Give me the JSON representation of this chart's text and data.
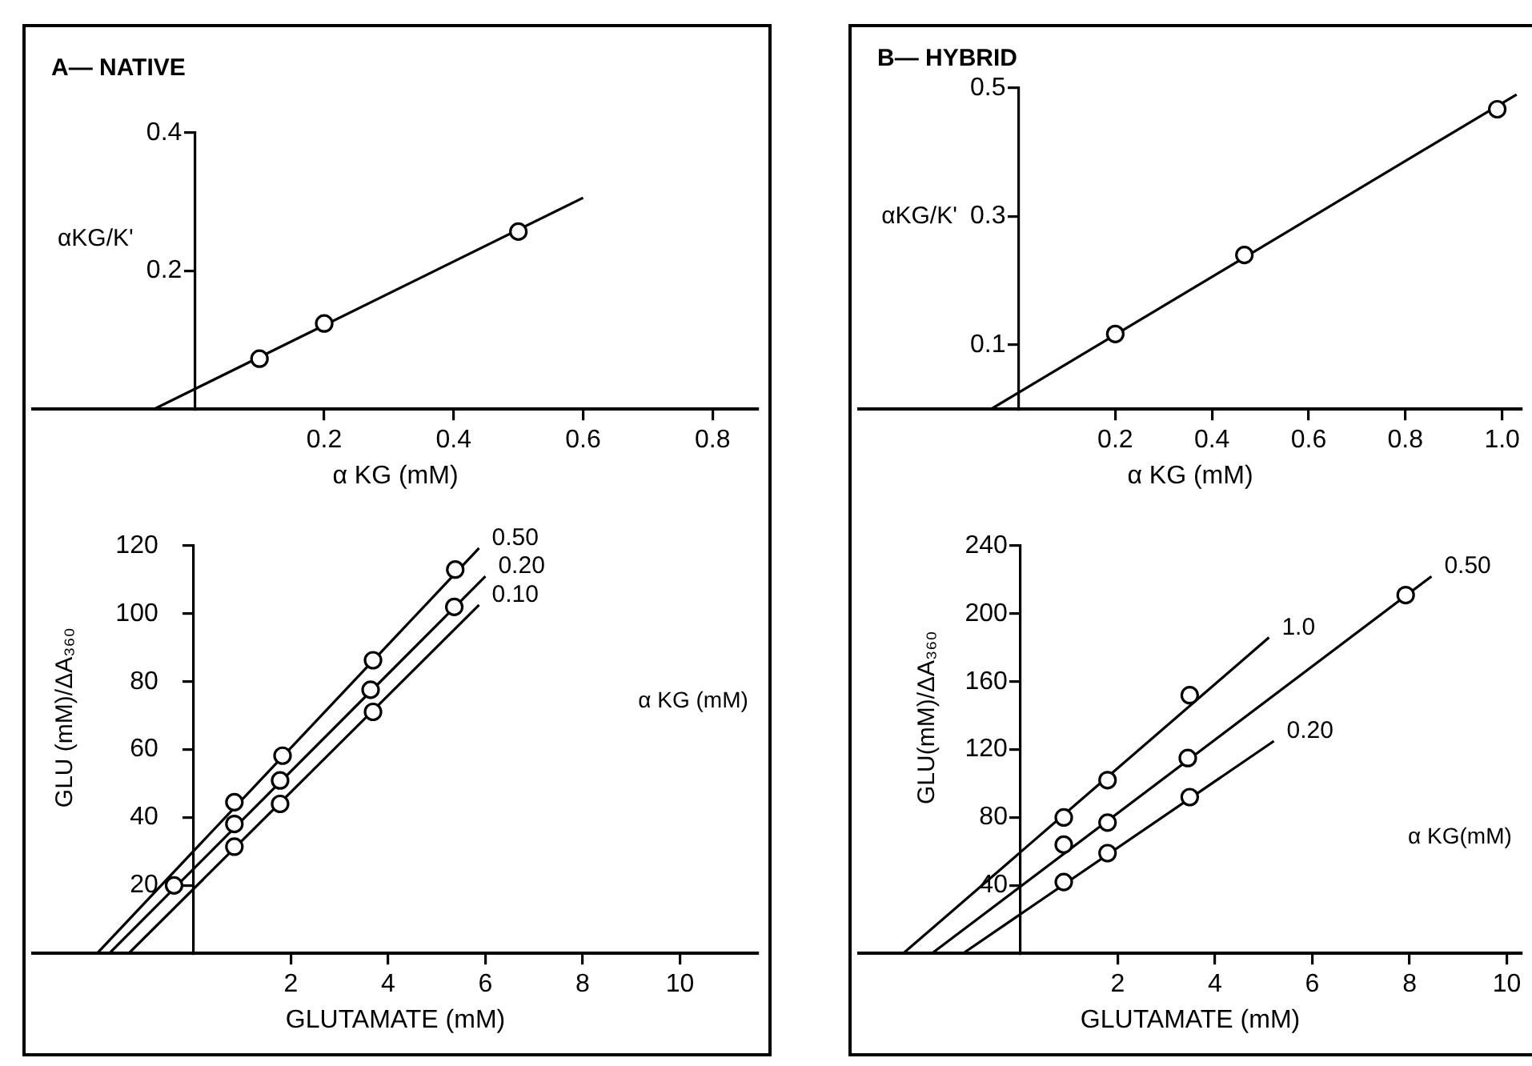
{
  "chart_data": [
    {
      "type": "scatter",
      "title": "A— NATIVE",
      "xlabel": "α KG (mM)",
      "ylabel": "αKG/K'",
      "xlim": [
        -0.25,
        0.87
      ],
      "ylim": [
        0,
        0.4
      ],
      "xticks": [
        0.2,
        0.4,
        0.6,
        0.8
      ],
      "yticks": [
        0.2,
        0.4
      ],
      "series": [
        {
          "type": "scatter",
          "marker": "circle",
          "color": "#000000",
          "x": [
            0.1,
            0.2,
            0.5
          ],
          "values": [
            0.073,
            0.124,
            0.257
          ]
        },
        {
          "type": "line",
          "marker": "none",
          "color": "#000000",
          "x": [
            -0.063,
            0.6
          ],
          "values": [
            0,
            0.306
          ]
        }
      ]
    },
    {
      "type": "scatter",
      "xlabel": "GLUTAMATE (mM)",
      "ylabel": "GLU (mM)/ΔA₃₆₀",
      "legend_title": "α KG (mM)",
      "xlim": [
        -3.3,
        11.6
      ],
      "ylim": [
        0,
        120
      ],
      "xticks": [
        2,
        4,
        6,
        8,
        10
      ],
      "yticks": [
        20,
        40,
        60,
        80,
        100,
        120
      ],
      "series": [
        {
          "type": "scatter",
          "marker": "circle",
          "color": "#000000",
          "x": [
            0.84,
            1.83,
            3.69,
            5.38
          ],
          "values": [
            44.5,
            58.2,
            86.3,
            113
          ]
        },
        {
          "type": "scatter",
          "marker": "circle",
          "color": "#000000",
          "x": [
            -0.4,
            0.84,
            1.78,
            3.64,
            5.36
          ],
          "values": [
            20,
            38.1,
            50.9,
            77.6,
            102
          ]
        },
        {
          "type": "scatter",
          "marker": "circle",
          "color": "#000000",
          "x": [
            0.84,
            1.78,
            3.69
          ],
          "values": [
            31.4,
            44,
            71.1
          ]
        },
        {
          "type": "line",
          "marker": "none",
          "name": "0.50",
          "color": "#000000",
          "x": [
            -1.98,
            5.87
          ],
          "values": [
            0,
            119.3
          ]
        },
        {
          "type": "line",
          "marker": "none",
          "name": "0.20",
          "color": "#000000",
          "x": [
            -1.73,
            6.0
          ],
          "values": [
            0,
            111
          ]
        },
        {
          "type": "line",
          "marker": "none",
          "name": "0.10",
          "color": "#000000",
          "x": [
            -1.33,
            5.87
          ],
          "values": [
            0,
            102.6
          ]
        }
      ]
    },
    {
      "type": "scatter",
      "title": "B— HYBRID",
      "xlabel": "α KG (mM)",
      "ylabel": "αKG/K'",
      "xlim": [
        -0.33,
        1.04
      ],
      "ylim": [
        0,
        0.5
      ],
      "xticks": [
        0.2,
        0.4,
        0.6,
        0.8,
        {
          "value": 1,
          "label": "1.0"
        }
      ],
      "yticks": [
        0.1,
        0.3,
        0.5
      ],
      "series": [
        {
          "type": "scatter",
          "marker": "circle",
          "color": "#000000",
          "x": [
            0.2,
            0.467,
            0.99
          ],
          "values": [
            0.117,
            0.24,
            0.467
          ]
        },
        {
          "type": "line",
          "marker": "none",
          "color": "#000000",
          "x": [
            -0.057,
            1.03
          ],
          "values": [
            0,
            0.49
          ]
        }
      ]
    },
    {
      "type": "scatter",
      "xlabel": "GLUTAMATE (mM)",
      "ylabel": "GLU(mM)/ΔA₃₆₀",
      "legend_title": "α KG(mM)",
      "xlim": [
        -3.32,
        10.3
      ],
      "ylim": [
        0,
        240
      ],
      "xticks": [
        2,
        4,
        6,
        8,
        10
      ],
      "yticks": [
        40,
        80,
        120,
        160,
        200,
        240
      ],
      "series": [
        {
          "type": "scatter",
          "marker": "circle",
          "color": "#000000",
          "x": [
            0.89,
            1.79,
            3.48
          ],
          "values": [
            80,
            102,
            152
          ]
        },
        {
          "type": "scatter",
          "marker": "circle",
          "color": "#000000",
          "x": [
            0.89,
            1.79,
            3.44,
            7.92
          ],
          "values": [
            64,
            77,
            115,
            211
          ]
        },
        {
          "type": "scatter",
          "marker": "circle",
          "color": "#000000",
          "x": [
            0.89,
            1.79,
            3.48
          ],
          "values": [
            42,
            59,
            92
          ]
        },
        {
          "type": "line",
          "marker": "none",
          "name": "1.0",
          "color": "#000000",
          "x": [
            -2.41,
            5.11
          ],
          "values": [
            0,
            186
          ]
        },
        {
          "type": "line",
          "marker": "none",
          "name": "0.50",
          "color": "#000000",
          "x": [
            -1.82,
            8.45
          ],
          "values": [
            0,
            222
          ]
        },
        {
          "type": "line",
          "marker": "none",
          "name": "0.20",
          "color": "#000000",
          "x": [
            -1.18,
            5.21
          ],
          "values": [
            0,
            125
          ]
        }
      ]
    }
  ]
}
